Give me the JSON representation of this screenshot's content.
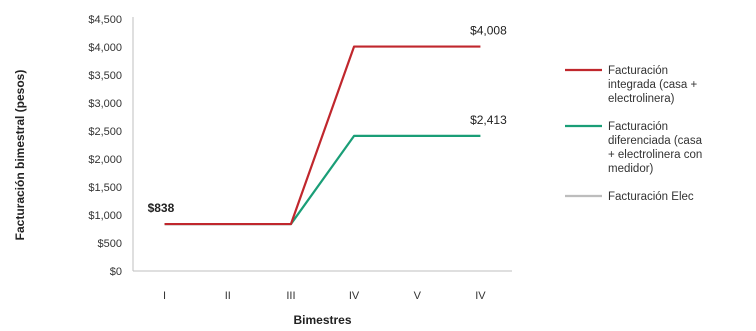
{
  "chart_data": {
    "type": "line",
    "categories": [
      "I",
      "II",
      "III",
      "IV",
      "V",
      "IV"
    ],
    "xlabel": "Bimestres",
    "ylabel": "Facturación bimestral (pesos)",
    "ylim": [
      0,
      4500
    ],
    "yticks": [
      0,
      500,
      1000,
      1500,
      2000,
      2500,
      3000,
      3500,
      4000,
      4500
    ],
    "ytick_labels": [
      "$0",
      "$500",
      "$1,000",
      "$1,500",
      "$2,000",
      "$2,500",
      "$3,000",
      "$3,500",
      "$4,000",
      "$4,500"
    ],
    "grid": false,
    "legend_position": "right",
    "series": [
      {
        "name": "Facturación integrada (casa + electrolinera)",
        "legend_lines": [
          "Facturación",
          "integrada (casa +",
          "electrolinera)"
        ],
        "color": "#c0272d",
        "values": [
          838,
          838,
          838,
          4008,
          4008,
          4008
        ]
      },
      {
        "name": "Facturación diferenciada (casa + electrolinera con medidor)",
        "legend_lines": [
          "Facturación",
          "diferenciada (casa",
          "+ electrolinera con",
          "medidor)"
        ],
        "color": "#1a9e77",
        "values": [
          838,
          838,
          838,
          2413,
          2413,
          2413
        ]
      },
      {
        "name": "Facturación Elec",
        "legend_lines": [
          "Facturación Elec"
        ],
        "color": "#bdbdbd",
        "values": [
          838,
          838,
          838,
          null,
          null,
          null
        ]
      }
    ],
    "annotations": [
      {
        "text": "$838",
        "category_index": 0,
        "value": 838,
        "bold": true
      },
      {
        "text": "$4,008",
        "category_index": 5,
        "value": 4008,
        "bold": false
      },
      {
        "text": "$2,413",
        "category_index": 5,
        "value": 2413,
        "bold": false
      }
    ]
  }
}
